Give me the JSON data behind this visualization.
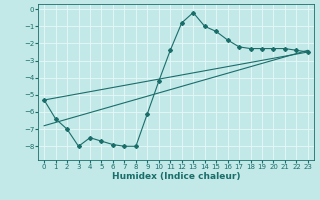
{
  "xlabel": "Humidex (Indice chaleur)",
  "ylabel": "",
  "bg_color": "#c2e8e8",
  "grid_color": "#e8f8f8",
  "line_color": "#1a6e6a",
  "xlim": [
    -0.5,
    23.5
  ],
  "ylim": [
    -8.8,
    0.3
  ],
  "yticks": [
    0,
    -1,
    -2,
    -3,
    -4,
    -5,
    -6,
    -7,
    -8
  ],
  "xticks": [
    0,
    1,
    2,
    3,
    4,
    5,
    6,
    7,
    8,
    9,
    10,
    11,
    12,
    13,
    14,
    15,
    16,
    17,
    18,
    19,
    20,
    21,
    22,
    23
  ],
  "main_x": [
    0,
    1,
    2,
    3,
    4,
    5,
    6,
    7,
    8,
    9,
    10,
    11,
    12,
    13,
    14,
    15,
    16,
    17,
    18,
    19,
    20,
    21,
    22,
    23
  ],
  "main_y": [
    -5.3,
    -6.4,
    -7.0,
    -8.0,
    -7.5,
    -7.7,
    -7.9,
    -8.0,
    -8.0,
    -6.1,
    -4.2,
    -2.4,
    -0.8,
    -0.2,
    -1.0,
    -1.3,
    -1.8,
    -2.2,
    -2.3,
    -2.3,
    -2.3,
    -2.3,
    -2.4,
    -2.5
  ],
  "line2_x": [
    0,
    23
  ],
  "line2_y": [
    -6.8,
    -2.4
  ],
  "line3_x": [
    0,
    23
  ],
  "line3_y": [
    -5.3,
    -2.5
  ]
}
